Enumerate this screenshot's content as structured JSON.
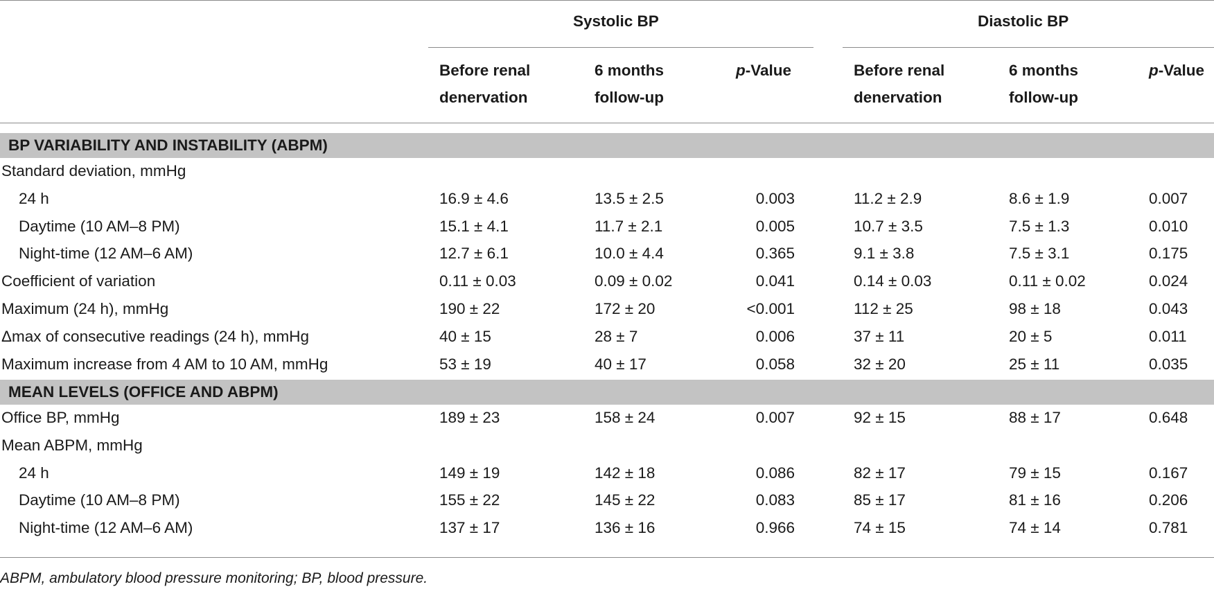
{
  "table": {
    "group_headers": [
      "Systolic BP",
      "Diastolic BP"
    ],
    "sub_headers": {
      "before": [
        "Before renal",
        "denervation"
      ],
      "followup": [
        "6 months",
        "follow-up"
      ],
      "p_italic": "p",
      "p_rest": "-Value"
    },
    "sections": [
      {
        "title": "BP VARIABILITY AND INSTABILITY (ABPM)",
        "rows": [
          {
            "label": "Standard deviation, mmHg",
            "indent": false,
            "values": [
              "",
              "",
              "",
              "",
              "",
              ""
            ]
          },
          {
            "label": "24 h",
            "indent": true,
            "values": [
              "16.9 ± 4.6",
              "13.5 ± 2.5",
              "0.003",
              "11.2 ± 2.9",
              "8.6 ± 1.9",
              "0.007"
            ]
          },
          {
            "label": "Daytime (10 AM–8 PM)",
            "indent": true,
            "values": [
              "15.1 ± 4.1",
              "11.7 ± 2.1",
              "0.005",
              "10.7 ± 3.5",
              "7.5 ± 1.3",
              "0.010"
            ]
          },
          {
            "label": "Night-time (12 AM–6 AM)",
            "indent": true,
            "values": [
              "12.7 ± 6.1",
              "10.0 ± 4.4",
              "0.365",
              "9.1 ± 3.8",
              "7.5 ± 3.1",
              "0.175"
            ]
          },
          {
            "label": "Coefficient of variation",
            "indent": false,
            "values": [
              "0.11 ± 0.03",
              "0.09 ± 0.02",
              "0.041",
              "0.14 ± 0.03",
              "0.11 ± 0.02",
              "0.024"
            ]
          },
          {
            "label": "Maximum (24 h), mmHg",
            "indent": false,
            "values": [
              "190 ± 22",
              "172 ± 20",
              "<0.001",
              "112 ± 25",
              "98 ± 18",
              "0.043"
            ]
          },
          {
            "label": "Δmax of consecutive readings (24 h), mmHg",
            "indent": false,
            "values": [
              "40 ± 15",
              "28 ± 7",
              "0.006",
              "37 ± 11",
              "20 ± 5",
              "0.011"
            ]
          },
          {
            "label": "Maximum increase from 4 AM to 10 AM, mmHg",
            "indent": false,
            "values": [
              "53 ± 19",
              "40 ± 17",
              "0.058",
              "32 ± 20",
              "25 ± 11",
              "0.035"
            ]
          }
        ]
      },
      {
        "title": "MEAN LEVELS (OFFICE AND ABPM)",
        "rows": [
          {
            "label": "Office BP, mmHg",
            "indent": false,
            "values": [
              "189 ± 23",
              "158 ± 24",
              "0.007",
              "92 ± 15",
              "88 ± 17",
              "0.648"
            ]
          },
          {
            "label": "Mean ABPM, mmHg",
            "indent": false,
            "values": [
              "",
              "",
              "",
              "",
              "",
              ""
            ]
          },
          {
            "label": "24 h",
            "indent": true,
            "values": [
              "149 ± 19",
              "142 ± 18",
              "0.086",
              "82 ± 17",
              "79 ± 15",
              "0.167"
            ]
          },
          {
            "label": "Daytime (10 AM–8 PM)",
            "indent": true,
            "values": [
              "155 ± 22",
              "145 ± 22",
              "0.083",
              "85 ± 17",
              "81 ± 16",
              "0.206"
            ]
          },
          {
            "label": "Night-time (12 AM–6 AM)",
            "indent": true,
            "values": [
              "137 ± 17",
              "136 ± 16",
              "0.966",
              "74 ± 15",
              "74 ± 14",
              "0.781"
            ]
          }
        ]
      }
    ],
    "footnote": "ABPM, ambulatory blood pressure monitoring; BP, blood pressure."
  }
}
